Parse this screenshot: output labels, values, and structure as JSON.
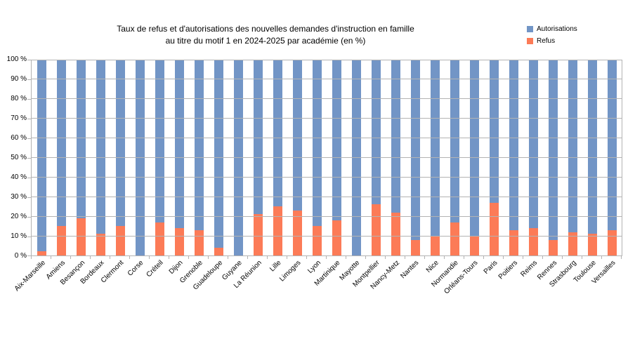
{
  "title": {
    "line1": "Taux de refus et d'autorisations des nouvelles demandes d'instruction en famille",
    "line2": "au titre du motif 1 en 2024-2025 par académie (en %)"
  },
  "legend": {
    "position": "top-right",
    "items": [
      {
        "label": "Autorisations",
        "color": "#7295C6"
      },
      {
        "label": "Refus",
        "color": "#FC7B57"
      }
    ]
  },
  "colors": {
    "autorisations": "#7295C6",
    "refus": "#FC7B57",
    "gridline": "#b3b3b3",
    "background": "#ffffff",
    "text": "#000000"
  },
  "chart_data": {
    "type": "bar",
    "stacked": true,
    "title": "Taux de refus et d'autorisations des nouvelles demandes d'instruction en famille au titre du motif 1 en 2024-2025 par académie (en %)",
    "xlabel": "",
    "ylabel": "",
    "ylim": [
      0,
      100
    ],
    "grid": true,
    "legend_position": "top-right",
    "yticks": [
      "0 %",
      "10 %",
      "20 %",
      "30 %",
      "40 %",
      "50 %",
      "60 %",
      "70 %",
      "80 %",
      "90 %",
      "100 %"
    ],
    "categories": [
      "Aix-Marseille",
      "Amiens",
      "Besançon",
      "Bordeaux",
      "Clermont",
      "Corse",
      "Créteil",
      "Dijon",
      "Grenoble",
      "Guadeloupe",
      "Guyane",
      "La Réunion",
      "Lille",
      "Limoges",
      "Lyon",
      "Martinique",
      "Mayotte",
      "Montpellier",
      "Nancy-Metz",
      "Nantes",
      "Nice",
      "Normandie",
      "Orléans-Tours",
      "Paris",
      "Poitiers",
      "Reims",
      "Rennes",
      "Strasbourg",
      "Toulouse",
      "Versailles"
    ],
    "series": [
      {
        "name": "Autorisations",
        "color": "#7295C6",
        "values": [
          98,
          85,
          81,
          89,
          85,
          100,
          83,
          86,
          87,
          96,
          100,
          79,
          75,
          77,
          85,
          82,
          100,
          74,
          78,
          92,
          90,
          83,
          90,
          73,
          87,
          86,
          92,
          88,
          89,
          87
        ]
      },
      {
        "name": "Refus",
        "color": "#FC7B57",
        "values": [
          2,
          15,
          19,
          11,
          15,
          0,
          17,
          14,
          13,
          4,
          0,
          21,
          25,
          23,
          15,
          18,
          0,
          26,
          22,
          8,
          10,
          17,
          10,
          27,
          13,
          14,
          8,
          12,
          11,
          13
        ]
      }
    ]
  }
}
